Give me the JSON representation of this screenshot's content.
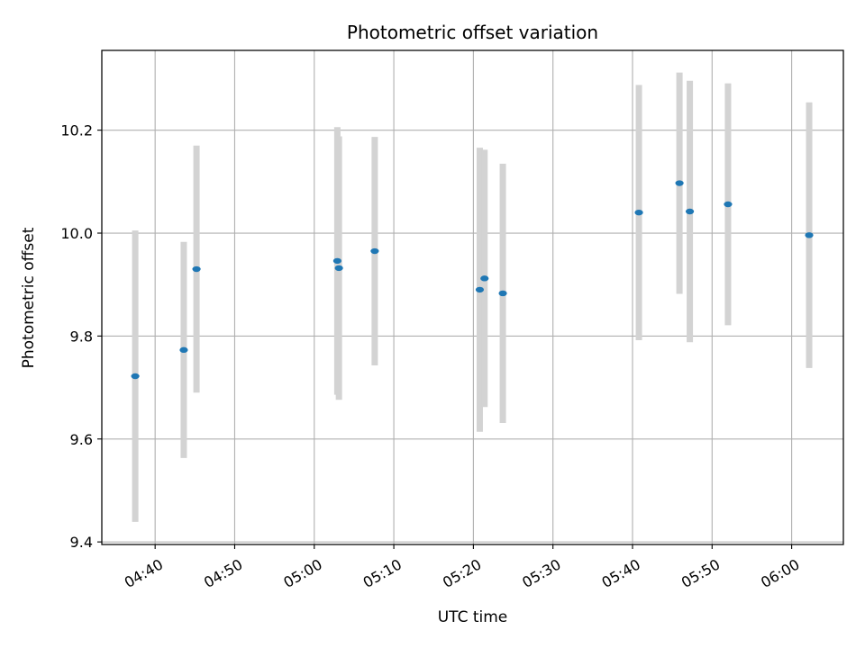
{
  "chart_data": {
    "type": "scatter",
    "title": "Photometric offset variation",
    "xlabel": "UTC time",
    "ylabel": "Photometric offset",
    "x_unit": "time",
    "xlim": [
      "04:33:18",
      "06:06:30"
    ],
    "ylim": [
      9.395,
      10.355
    ],
    "x_ticks": [
      "04:40",
      "04:50",
      "05:00",
      "05:10",
      "05:20",
      "05:30",
      "05:40",
      "05:50",
      "06:00"
    ],
    "y_ticks": [
      9.4,
      9.6,
      9.8,
      10.0,
      10.2
    ],
    "y_tick_labels": [
      "9.4",
      "9.6",
      "9.8",
      "10.0",
      "10.2"
    ],
    "grid": true,
    "marker_color": "#1f77b4",
    "errorbar_color": "#d3d3d3",
    "points": [
      {
        "time": "04:37:30",
        "y": 9.722,
        "yerr": 0.283
      },
      {
        "time": "04:43:36",
        "y": 9.773,
        "yerr": 0.21
      },
      {
        "time": "04:45:12",
        "y": 9.93,
        "yerr": 0.24
      },
      {
        "time": "05:02:54",
        "y": 9.946,
        "yerr": 0.26
      },
      {
        "time": "05:03:06",
        "y": 9.932,
        "yerr": 0.256
      },
      {
        "time": "05:07:36",
        "y": 9.965,
        "yerr": 0.222
      },
      {
        "time": "05:20:48",
        "y": 9.89,
        "yerr": 0.276
      },
      {
        "time": "05:21:24",
        "y": 9.912,
        "yerr": 0.25
      },
      {
        "time": "05:23:42",
        "y": 9.883,
        "yerr": 0.252
      },
      {
        "time": "05:40:48",
        "y": 10.04,
        "yerr": 0.248
      },
      {
        "time": "05:45:54",
        "y": 10.097,
        "yerr": 0.215
      },
      {
        "time": "05:47:12",
        "y": 10.042,
        "yerr": 0.254
      },
      {
        "time": "05:52:00",
        "y": 10.056,
        "yerr": 0.235
      },
      {
        "time": "06:02:12",
        "y": 9.996,
        "yerr": 0.258
      }
    ]
  }
}
